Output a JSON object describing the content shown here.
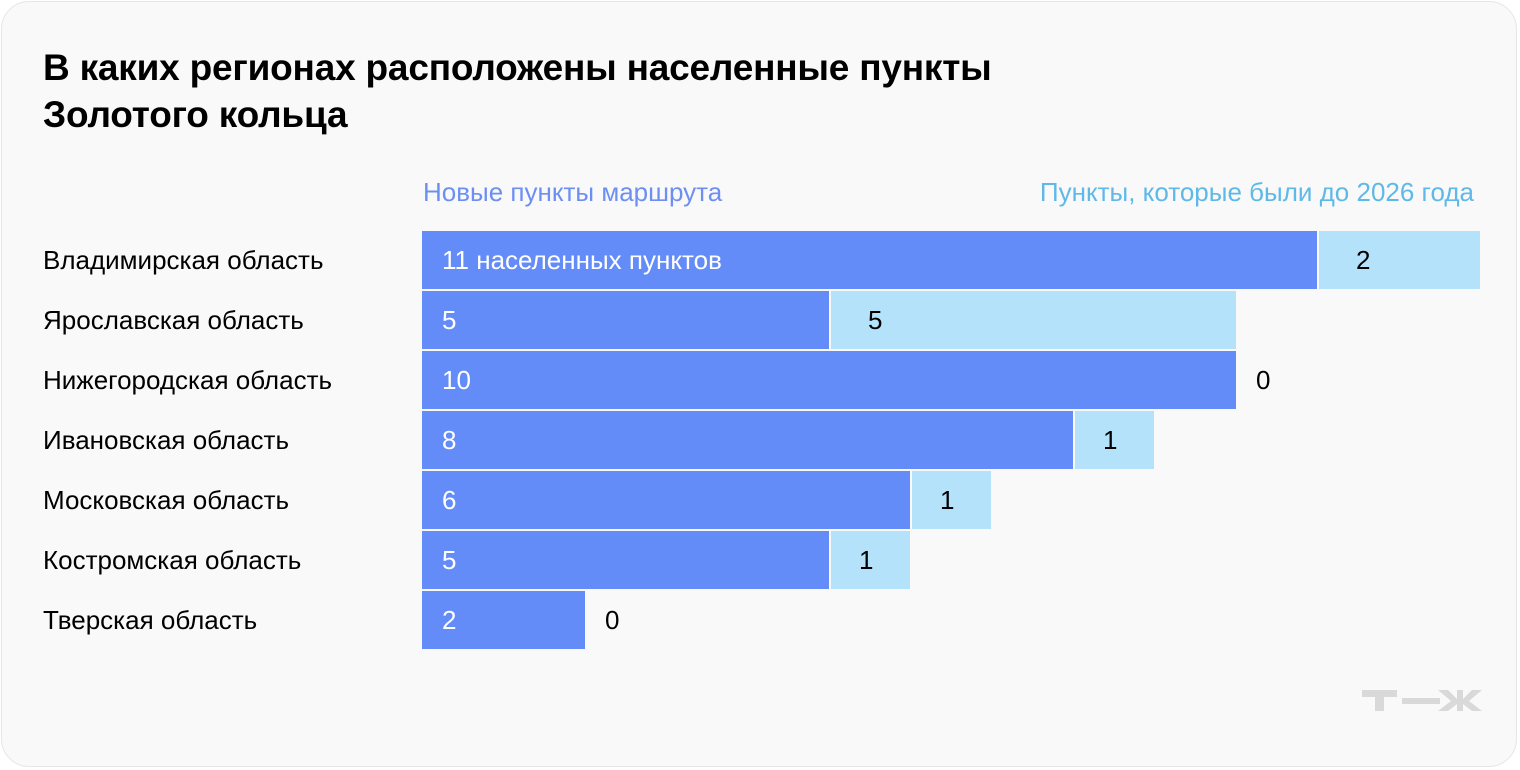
{
  "title": "В каких регионах расположены населенные пункты Золотого кольца",
  "legend": {
    "new": "Новые пункты маршрута",
    "old": "Пункты, которые были до 2026 года"
  },
  "colors": {
    "new": "#648cf8",
    "old": "#b3e2fa",
    "background": "#f9f9f9"
  },
  "rows": [
    {
      "region": "Владимирская область",
      "new": 11,
      "new_label": "11 населенных пунктов",
      "old": 2,
      "old_label": "2"
    },
    {
      "region": "Ярославская область",
      "new": 5,
      "new_label": "5",
      "old": 5,
      "old_label": "5"
    },
    {
      "region": "Нижегородская область",
      "new": 10,
      "new_label": "10",
      "old": 0,
      "old_label": "0"
    },
    {
      "region": "Ивановская область",
      "new": 8,
      "new_label": "8",
      "old": 1,
      "old_label": "1"
    },
    {
      "region": "Московская область",
      "new": 6,
      "new_label": "6",
      "old": 1,
      "old_label": "1"
    },
    {
      "region": "Костромская область",
      "new": 5,
      "new_label": "5",
      "old": 1,
      "old_label": "1"
    },
    {
      "region": "Тверская область",
      "new": 2,
      "new_label": "2",
      "old": 0,
      "old_label": "0"
    }
  ],
  "logo": "т—ж",
  "chart_data": {
    "type": "bar",
    "orientation": "horizontal",
    "stacked": true,
    "title": "В каких регионах расположены населенные пункты Золотого кольца",
    "categories": [
      "Владимирская область",
      "Ярославская область",
      "Нижегородская область",
      "Ивановская область",
      "Московская область",
      "Костромская область",
      "Тверская область"
    ],
    "series": [
      {
        "name": "Новые пункты маршрута",
        "color": "#648cf8",
        "values": [
          11,
          5,
          10,
          8,
          6,
          5,
          2
        ]
      },
      {
        "name": "Пункты, которые были до 2026 года",
        "color": "#b3e2fa",
        "values": [
          2,
          5,
          0,
          1,
          1,
          1,
          0
        ]
      }
    ],
    "xlabel": "",
    "ylabel": "",
    "grid": false,
    "legend_position": "top",
    "annotations": [
      "11 населенных пунктов"
    ]
  }
}
